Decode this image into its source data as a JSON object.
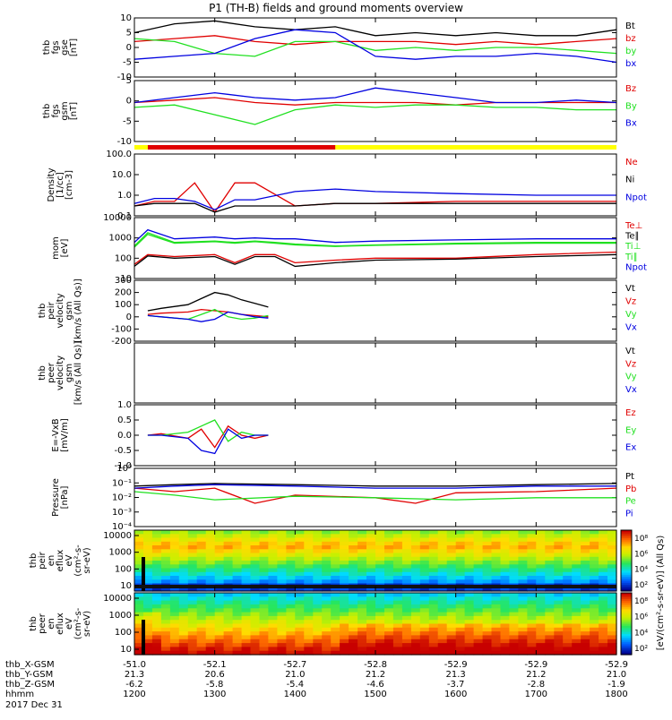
{
  "title": "P1 (TH-B) fields and ground moments overview",
  "colors": {
    "black": "#000000",
    "red": "#e00000",
    "green": "#20e020",
    "blue": "#0000e0",
    "bar_red": "#e00000",
    "bar_yellow": "#ffff00"
  },
  "x_axis": {
    "tick_hours": [
      "1200",
      "1300",
      "1400",
      "1500",
      "1600",
      "1700",
      "1800"
    ],
    "rows": [
      {
        "label": "thb_X-GSM",
        "values": [
          "-51.0",
          "-52.1",
          "-52.7",
          "-52.8",
          "-52.9",
          "-52.9",
          "-52.9"
        ]
      },
      {
        "label": "thb_Y-GSM",
        "values": [
          "21.3",
          "20.6",
          "21.0",
          "21.2",
          "21.3",
          "21.2",
          "21.0"
        ]
      },
      {
        "label": "thb_Z-GSM",
        "values": [
          "-6.2",
          "-5.8",
          "-5.4",
          "-4.6",
          "-3.7",
          "-2.8",
          "-1.9"
        ]
      },
      {
        "label": "hhmm",
        "values": [
          "1200",
          "1300",
          "1400",
          "1500",
          "1600",
          "1700",
          "1800"
        ]
      }
    ],
    "date": "2017 Dec 31"
  },
  "mode_bar": {
    "red_start": "1210",
    "red_end": "1430"
  },
  "chart_data": [
    {
      "type": "line",
      "id": "fgs_gse",
      "ylabel": [
        "thb",
        "fgs",
        "gse",
        "[nT]"
      ],
      "ylim": [
        -10,
        10
      ],
      "yticks": [
        "10",
        "5",
        "0",
        "-5",
        "-10"
      ],
      "series": [
        {
          "name": "Bt",
          "color": "#000000",
          "x": [
            "1200",
            "1230",
            "1300",
            "1330",
            "1400",
            "1430",
            "1500",
            "1530",
            "1600",
            "1630",
            "1700",
            "1730",
            "1800"
          ],
          "values": [
            5,
            8,
            9,
            7,
            6,
            7,
            4,
            5,
            4,
            5,
            4,
            4,
            6
          ]
        },
        {
          "name": "bz",
          "color": "#e00000",
          "x": [
            "1200",
            "1230",
            "1300",
            "1330",
            "1400",
            "1430",
            "1500",
            "1530",
            "1600",
            "1630",
            "1700",
            "1730",
            "1800"
          ],
          "values": [
            2,
            3,
            4,
            2,
            1,
            2,
            2,
            2,
            1,
            2,
            1,
            2,
            3
          ]
        },
        {
          "name": "by",
          "color": "#20e020",
          "x": [
            "1200",
            "1230",
            "1300",
            "1330",
            "1400",
            "1430",
            "1500",
            "1530",
            "1600",
            "1630",
            "1700",
            "1730",
            "1800"
          ],
          "values": [
            3,
            2,
            -2,
            -3,
            2,
            2,
            -1,
            0,
            -1,
            0,
            0,
            -1,
            -2
          ]
        },
        {
          "name": "bx",
          "color": "#0000e0",
          "x": [
            "1200",
            "1230",
            "1300",
            "1330",
            "1400",
            "1430",
            "1500",
            "1530",
            "1600",
            "1630",
            "1700",
            "1730",
            "1800"
          ],
          "values": [
            -4,
            -3,
            -2,
            3,
            6,
            5,
            -3,
            -4,
            -3,
            -3,
            -2,
            -3,
            -5
          ]
        }
      ]
    },
    {
      "type": "line",
      "id": "fgs_gsm",
      "ylabel": [
        "thb",
        "fgs",
        "gsm",
        "[nT]"
      ],
      "ylim": [
        -15,
        10
      ],
      "yticks": [
        "5",
        "0",
        "-5",
        "-10"
      ],
      "series": [
        {
          "name": "Bz",
          "color": "#e00000",
          "x": [
            "1200",
            "1230",
            "1300",
            "1330",
            "1400",
            "1430",
            "1500",
            "1530",
            "1600",
            "1630",
            "1700",
            "1730",
            "1800"
          ],
          "values": [
            1,
            2,
            3,
            1,
            0,
            1,
            1,
            1,
            0,
            1,
            1,
            1,
            1
          ]
        },
        {
          "name": "By",
          "color": "#20e020",
          "x": [
            "1200",
            "1230",
            "1300",
            "1330",
            "1400",
            "1430",
            "1500",
            "1530",
            "1600",
            "1630",
            "1700",
            "1730",
            "1800"
          ],
          "values": [
            -1,
            0,
            -4,
            -8,
            -2,
            0,
            -1,
            0,
            0,
            -1,
            -1,
            -2,
            -2
          ]
        },
        {
          "name": "Bx",
          "color": "#0000e0",
          "x": [
            "1200",
            "1230",
            "1300",
            "1330",
            "1400",
            "1430",
            "1500",
            "1530",
            "1600",
            "1630",
            "1700",
            "1730",
            "1800"
          ],
          "values": [
            1,
            3,
            5,
            3,
            2,
            3,
            7,
            5,
            3,
            1,
            1,
            2,
            1
          ]
        }
      ]
    },
    {
      "type": "line",
      "id": "density",
      "scale": "log",
      "ylabel": [
        "Density",
        "[1/cc]",
        "[cm-3]"
      ],
      "ylim": [
        0.1,
        100.0
      ],
      "yticks": [
        "100.0",
        "10.0",
        "1.0",
        "0.1"
      ],
      "series": [
        {
          "name": "Ne",
          "color": "#e00000",
          "x": [
            "1200",
            "1215",
            "1230",
            "1245",
            "1300",
            "1315",
            "1330",
            "1400",
            "1430",
            "1500",
            "1600",
            "1700",
            "1800"
          ],
          "values": [
            0.3,
            0.5,
            0.5,
            4,
            0.15,
            4,
            4,
            0.3,
            0.4,
            0.4,
            0.5,
            0.5,
            0.5
          ]
        },
        {
          "name": "Ni",
          "color": "#000000",
          "x": [
            "1200",
            "1215",
            "1230",
            "1245",
            "1300",
            "1315",
            "1330",
            "1400",
            "1430",
            "1500",
            "1600",
            "1700",
            "1800"
          ],
          "values": [
            0.3,
            0.4,
            0.4,
            0.4,
            0.15,
            0.3,
            0.3,
            0.3,
            0.4,
            0.4,
            0.4,
            0.4,
            0.4
          ]
        },
        {
          "name": "Npot",
          "color": "#0000e0",
          "x": [
            "1200",
            "1215",
            "1230",
            "1245",
            "1300",
            "1315",
            "1330",
            "1400",
            "1430",
            "1500",
            "1600",
            "1700",
            "1800"
          ],
          "values": [
            0.4,
            0.7,
            0.7,
            0.5,
            0.2,
            0.6,
            0.6,
            1.5,
            2,
            1.5,
            1.2,
            1.0,
            1.0
          ]
        }
      ]
    },
    {
      "type": "line",
      "id": "temperature",
      "scale": "log",
      "ylabel": [
        "mom",
        "[eV]"
      ],
      "ylim": [
        10,
        10000
      ],
      "yticks": [
        "10000",
        "1000",
        "100",
        "10"
      ],
      "series": [
        {
          "name": "Te⊥",
          "color": "#e00000",
          "x": [
            "1200",
            "1210",
            "1230",
            "1300",
            "1315",
            "1330",
            "1345",
            "1400",
            "1430",
            "1500",
            "1600",
            "1700",
            "1800"
          ],
          "values": [
            50,
            150,
            120,
            150,
            60,
            150,
            150,
            60,
            80,
            100,
            100,
            150,
            200
          ]
        },
        {
          "name": "Te∥",
          "color": "#000000",
          "x": [
            "1200",
            "1210",
            "1230",
            "1300",
            "1315",
            "1330",
            "1345",
            "1400",
            "1430",
            "1500",
            "1600",
            "1700",
            "1800"
          ],
          "values": [
            40,
            130,
            100,
            120,
            50,
            120,
            120,
            40,
            60,
            80,
            90,
            120,
            150
          ]
        },
        {
          "name": "Ti⊥",
          "color": "#20e020",
          "x": [
            "1200",
            "1210",
            "1230",
            "1300",
            "1315",
            "1330",
            "1345",
            "1400",
            "1430",
            "1500",
            "1600",
            "1700",
            "1800"
          ],
          "values": [
            400,
            1800,
            600,
            700,
            600,
            700,
            600,
            500,
            400,
            450,
            550,
            600,
            600
          ]
        },
        {
          "name": "Ti∥",
          "color": "#20e020",
          "x": [
            "1200",
            "1210",
            "1230",
            "1300",
            "1315",
            "1330",
            "1345",
            "1400",
            "1430",
            "1500",
            "1600",
            "1700",
            "1800"
          ],
          "values": [
            350,
            1500,
            550,
            650,
            550,
            650,
            550,
            450,
            380,
            430,
            500,
            550,
            550
          ]
        },
        {
          "name": "Npot",
          "color": "#0000e0",
          "x": [
            "1200",
            "1210",
            "1230",
            "1300",
            "1315",
            "1330",
            "1345",
            "1400",
            "1430",
            "1500",
            "1600",
            "1700",
            "1800"
          ],
          "values": [
            600,
            2500,
            900,
            1100,
            900,
            1000,
            900,
            900,
            600,
            700,
            800,
            900,
            900
          ]
        }
      ]
    },
    {
      "type": "line",
      "id": "peir_velocity",
      "ylabel": [
        "thb",
        "peir",
        "velocity",
        "gsm",
        "[km/s (All Qs)]"
      ],
      "ylim": [
        -200,
        300
      ],
      "yticks": [
        "300",
        "200",
        "100",
        "0",
        "-100",
        "-200"
      ],
      "series": [
        {
          "name": "Vt",
          "color": "#000000",
          "x": [
            "1210",
            "1220",
            "1240",
            "1250",
            "1300",
            "1310",
            "1320",
            "1330",
            "1340"
          ],
          "values": [
            50,
            70,
            100,
            150,
            200,
            180,
            140,
            110,
            80
          ]
        },
        {
          "name": "Vz",
          "color": "#e00000",
          "x": [
            "1210",
            "1220",
            "1240",
            "1250",
            "1300",
            "1310",
            "1320",
            "1330",
            "1340"
          ],
          "values": [
            20,
            30,
            40,
            60,
            50,
            40,
            20,
            10,
            0
          ]
        },
        {
          "name": "Vy",
          "color": "#20e020",
          "x": [
            "1210",
            "1220",
            "1240",
            "1250",
            "1300",
            "1310",
            "1320",
            "1330",
            "1340"
          ],
          "values": [
            10,
            0,
            -20,
            20,
            60,
            0,
            -20,
            -10,
            10
          ]
        },
        {
          "name": "Vx",
          "color": "#0000e0",
          "x": [
            "1210",
            "1220",
            "1240",
            "1250",
            "1300",
            "1310",
            "1320",
            "1330",
            "1340"
          ],
          "values": [
            10,
            0,
            -20,
            -40,
            -20,
            40,
            20,
            0,
            -10
          ]
        }
      ]
    },
    {
      "type": "line",
      "id": "peer_velocity",
      "ylabel": [
        "thb",
        "peer",
        "velocity",
        "gsm",
        "[km/s (All Qs)]"
      ],
      "series": [
        {
          "name": "Vt",
          "color": "#000000"
        },
        {
          "name": "Vz",
          "color": "#e00000"
        },
        {
          "name": "Vy",
          "color": "#20e020"
        },
        {
          "name": "Vx",
          "color": "#0000e0"
        }
      ]
    },
    {
      "type": "line",
      "id": "e_field",
      "ylabel": [
        "E=-VxB",
        "[mV/m]"
      ],
      "ylim": [
        -1.0,
        1.0
      ],
      "yticks": [
        "1.0",
        "0.5",
        "0.0",
        "-0.5",
        "-1.0"
      ],
      "series": [
        {
          "name": "Ez",
          "color": "#e00000",
          "x": [
            "1210",
            "1220",
            "1240",
            "1250",
            "1300",
            "1310",
            "1320",
            "1330",
            "1340"
          ],
          "values": [
            0.0,
            0.05,
            -0.1,
            0.2,
            -0.4,
            0.3,
            0.0,
            -0.1,
            0.0
          ]
        },
        {
          "name": "Ey",
          "color": "#20e020",
          "x": [
            "1210",
            "1220",
            "1240",
            "1250",
            "1300",
            "1310",
            "1320",
            "1330",
            "1340"
          ],
          "values": [
            0.0,
            0.0,
            0.1,
            0.3,
            0.5,
            -0.2,
            0.1,
            0.0,
            0.0
          ]
        },
        {
          "name": "Ex",
          "color": "#0000e0",
          "x": [
            "1210",
            "1220",
            "1240",
            "1250",
            "1300",
            "1310",
            "1320",
            "1330",
            "1340"
          ],
          "values": [
            0.0,
            0.0,
            -0.1,
            -0.5,
            -0.6,
            0.2,
            -0.1,
            0.0,
            0.0
          ]
        }
      ]
    },
    {
      "type": "line",
      "id": "pressure",
      "scale": "log",
      "ylabel": [
        "Pressure",
        "[nPa]"
      ],
      "ylim": [
        1e-05,
        1
      ],
      "yticks": [
        "10⁰",
        "10⁻¹",
        "10⁻²",
        "10⁻³",
        "10⁻⁴"
      ],
      "series": [
        {
          "name": "Pt",
          "color": "#000000",
          "x": [
            "1200",
            "1230",
            "1300",
            "1400",
            "1500",
            "1600",
            "1700",
            "1800"
          ],
          "values": [
            0.03,
            0.04,
            0.05,
            0.04,
            0.03,
            0.03,
            0.04,
            0.05
          ]
        },
        {
          "name": "Pb",
          "color": "#e00000",
          "x": [
            "1200",
            "1230",
            "1300",
            "1330",
            "1400",
            "1500",
            "1530",
            "1600",
            "1700",
            "1800"
          ],
          "values": [
            0.02,
            0.01,
            0.02,
            0.001,
            0.005,
            0.003,
            0.001,
            0.008,
            0.01,
            0.02
          ]
        },
        {
          "name": "Pe",
          "color": "#20e020",
          "x": [
            "1200",
            "1230",
            "1300",
            "1400",
            "1500",
            "1600",
            "1700",
            "1800"
          ],
          "values": [
            0.01,
            0.005,
            0.002,
            0.004,
            0.003,
            0.002,
            0.003,
            0.003
          ]
        },
        {
          "name": "Pi",
          "color": "#0000e0",
          "x": [
            "1200",
            "1230",
            "1300",
            "1400",
            "1500",
            "1600",
            "1700",
            "1800"
          ],
          "values": [
            0.02,
            0.03,
            0.04,
            0.03,
            0.02,
            0.02,
            0.03,
            0.03
          ]
        }
      ]
    },
    {
      "type": "heatmap",
      "id": "peir_spec",
      "ylabel": [
        "thb",
        "peir",
        "en",
        "eflux",
        "eV",
        "(cm²-s-",
        "sr-eV)"
      ],
      "yticks": [
        "10000",
        "1000",
        "100",
        "10"
      ]
    },
    {
      "type": "heatmap",
      "id": "peer_spec",
      "ylabel": [
        "thb",
        "peer",
        "en",
        "eflux",
        "eV",
        "(cm²-s-",
        "sr-eV)"
      ],
      "yticks": [
        "10000",
        "1000",
        "100",
        "10"
      ]
    }
  ],
  "colorbar": {
    "ticks": [
      "10⁸",
      "10⁶",
      "10⁴",
      "10²",
      "10⁸",
      "10⁶",
      "10⁴",
      "10²"
    ],
    "label": "[eV/(cm²-s-sr-eV)] (All Qs)"
  }
}
